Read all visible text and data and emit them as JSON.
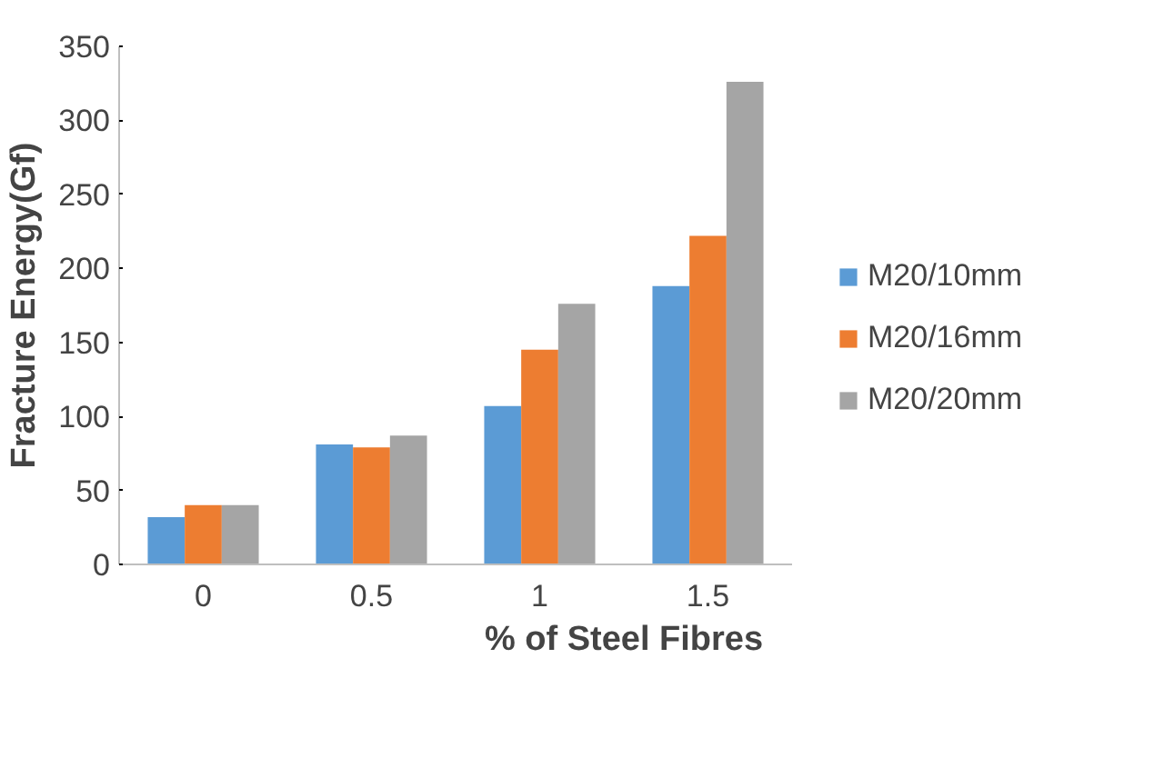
{
  "chart_data": {
    "type": "bar",
    "xlabel": "% of Steel Fibres",
    "ylabel": "Fracture Energy(Gf)",
    "categories": [
      "0",
      "0.5",
      "1",
      "1.5"
    ],
    "series": [
      {
        "name": "M20/10mm",
        "color": "#5b9bd5",
        "values": [
          32,
          81,
          107,
          188
        ]
      },
      {
        "name": "M20/16mm",
        "color": "#ed7d31",
        "values": [
          40,
          79,
          145,
          222
        ]
      },
      {
        "name": "M20/20mm",
        "color": "#a5a5a5",
        "values": [
          40,
          87,
          176,
          326
        ]
      }
    ],
    "ylim": [
      0,
      350
    ],
    "yticks": [
      0,
      50,
      100,
      150,
      200,
      250,
      300,
      350
    ],
    "legend": "right"
  }
}
